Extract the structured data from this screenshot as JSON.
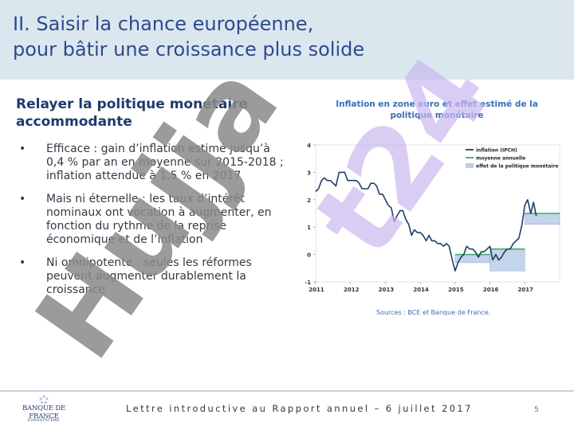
{
  "header": {
    "title": "II. Saisir la chance européenne,\npour bâtir une croissance plus solide"
  },
  "content": {
    "subtitle": "Relayer la politique monétaire accommodante",
    "bullets": [
      "Efficace : gain d’inflation estimé jusqu’à 0,4 % par an en moyenne sur 2015-2018 ; inflation attendue à 1,5 % en 2017",
      "Mais ni éternelle : les taux d’intérêt nominaux ont vocation à augmenter, en fonction du rythme de la reprise économique et de l’inflation",
      "Ni omnipotente : seules les réformes peuvent augmenter durablement la croissance"
    ]
  },
  "watermark": {
    "text": "Hujjat24",
    "color": "#8a8a8a",
    "accent": "#c9b8f0"
  },
  "chart_data": {
    "type": "line",
    "title": "Inflation en zone euro et effet estimé de la politique monétaire",
    "x_ticks": [
      "2011",
      "2012",
      "2013",
      "2014",
      "2015",
      "2016",
      "2017"
    ],
    "y_ticks": [
      "4",
      "3",
      "2",
      "1",
      "0",
      "-1"
    ],
    "ylim": [
      -1,
      4
    ],
    "xlim": [
      2011.0,
      2018.0
    ],
    "legend": {
      "placement": "top-right",
      "entries": [
        "inflation (IPCH)",
        "moyenne annuelle",
        "effet de la politique monétaire"
      ]
    },
    "colors": {
      "inflation": "#1f3f66",
      "mean": "#3aa86b",
      "effect": "#b8cde8"
    },
    "series": [
      {
        "name": "inflation (IPCH)",
        "x": [
          2011.0,
          2011.08,
          2011.17,
          2011.25,
          2011.33,
          2011.42,
          2011.5,
          2011.58,
          2011.67,
          2011.75,
          2011.83,
          2011.92,
          2012.0,
          2012.08,
          2012.17,
          2012.25,
          2012.33,
          2012.42,
          2012.5,
          2012.58,
          2012.67,
          2012.75,
          2012.83,
          2012.92,
          2013.0,
          2013.08,
          2013.17,
          2013.25,
          2013.33,
          2013.42,
          2013.5,
          2013.58,
          2013.67,
          2013.75,
          2013.83,
          2013.92,
          2014.0,
          2014.08,
          2014.17,
          2014.25,
          2014.33,
          2014.42,
          2014.5,
          2014.58,
          2014.67,
          2014.75,
          2014.83,
          2014.92,
          2015.0,
          2015.08,
          2015.17,
          2015.25,
          2015.33,
          2015.42,
          2015.5,
          2015.58,
          2015.67,
          2015.75,
          2015.83,
          2015.92,
          2016.0,
          2016.08,
          2016.17,
          2016.25,
          2016.33,
          2016.42,
          2016.5,
          2016.58,
          2016.67,
          2016.75,
          2016.83,
          2016.92,
          2017.0,
          2017.08,
          2017.17,
          2017.25,
          2017.33
        ],
        "values": [
          2.3,
          2.4,
          2.7,
          2.8,
          2.7,
          2.7,
          2.6,
          2.5,
          3.0,
          3.0,
          3.0,
          2.7,
          2.7,
          2.7,
          2.7,
          2.6,
          2.4,
          2.4,
          2.4,
          2.6,
          2.6,
          2.5,
          2.2,
          2.2,
          2.0,
          1.8,
          1.7,
          1.2,
          1.4,
          1.6,
          1.6,
          1.3,
          1.1,
          0.7,
          0.9,
          0.8,
          0.8,
          0.7,
          0.5,
          0.7,
          0.5,
          0.5,
          0.4,
          0.4,
          0.3,
          0.4,
          0.3,
          -0.2,
          -0.6,
          -0.3,
          -0.1,
          0.0,
          0.3,
          0.2,
          0.2,
          0.1,
          -0.1,
          0.1,
          0.1,
          0.2,
          0.3,
          -0.2,
          0.0,
          -0.2,
          -0.1,
          0.1,
          0.2,
          0.2,
          0.4,
          0.5,
          0.6,
          1.1,
          1.8,
          2.0,
          1.5,
          1.9,
          1.4
        ]
      },
      {
        "name": "moyenne annuelle",
        "segments": [
          {
            "x": [
              2015.0,
              2016.0
            ],
            "values": [
              0.0,
              0.0
            ]
          },
          {
            "x": [
              2016.0,
              2017.0
            ],
            "values": [
              0.2,
              0.2
            ]
          },
          {
            "x": [
              2017.0,
              2018.0
            ],
            "values": [
              1.5,
              1.5
            ]
          }
        ]
      },
      {
        "name": "effet de la politique monétaire",
        "bands": [
          {
            "x": [
              2015.0,
              2016.0
            ],
            "from": -0.3,
            "to": 0.0
          },
          {
            "x": [
              2016.0,
              2017.0
            ],
            "from": -0.6,
            "to": 0.2
          },
          {
            "x": [
              2017.0,
              2018.0
            ],
            "from": 1.1,
            "to": 1.5
          }
        ]
      }
    ]
  },
  "sources": "Sources : BCE et Banque de France.",
  "footer": {
    "logo": "BANQUE DE FRANCE",
    "logo_sub": "EUROSYSTÈME",
    "text": "Lettre introductive au Rapport annuel – 6 juillet 2017",
    "page": "5"
  }
}
